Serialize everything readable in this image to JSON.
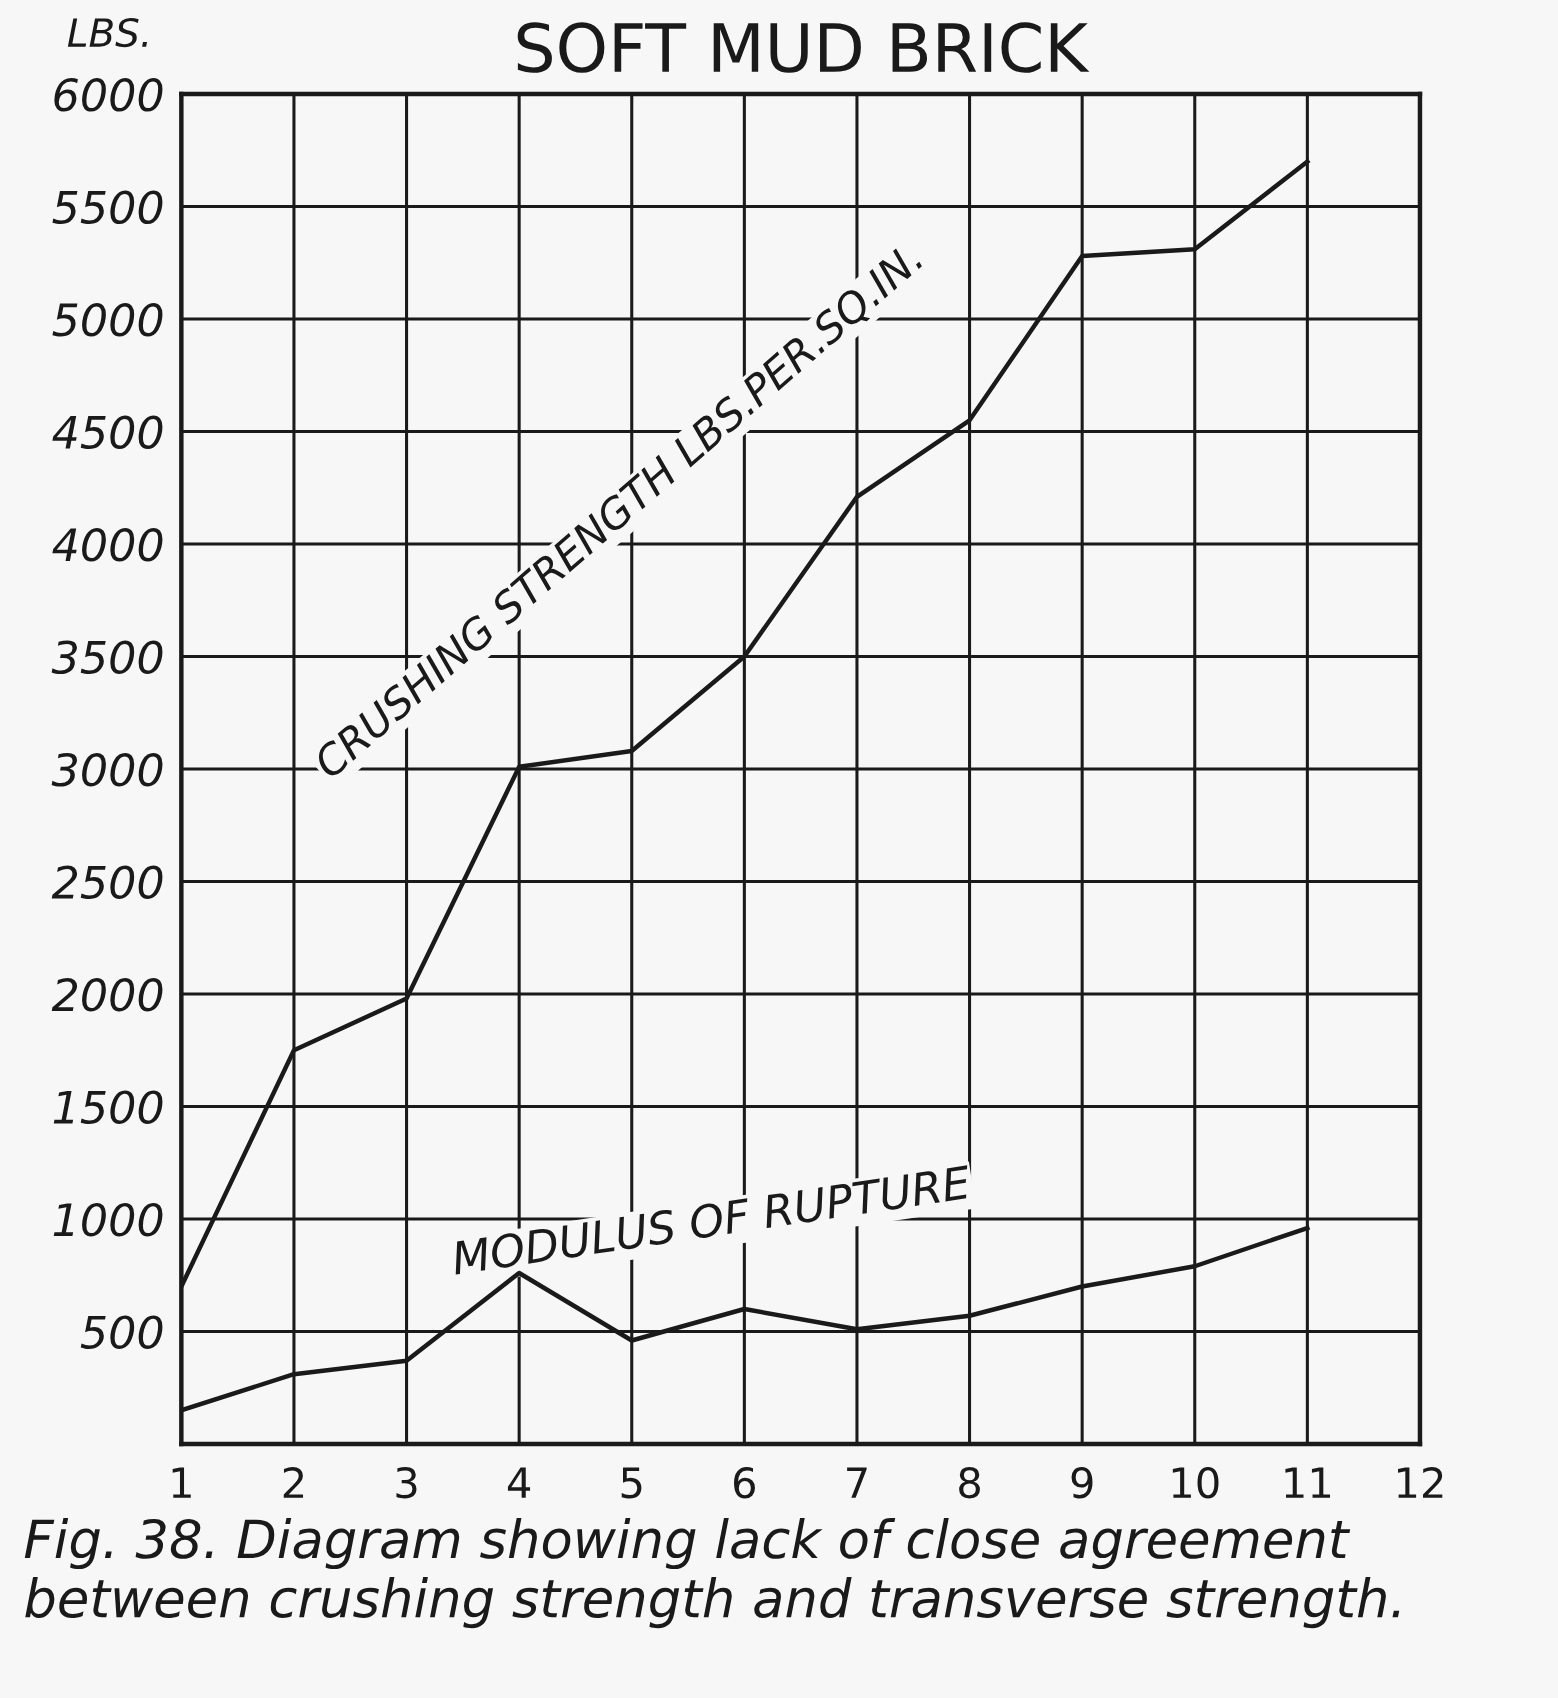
{
  "chart_data": {
    "type": "line",
    "title": "SOFT MUD BRICK",
    "ylabel": "LBS.",
    "x": [
      1,
      2,
      3,
      4,
      5,
      6,
      7,
      8,
      9,
      10,
      11
    ],
    "series": [
      {
        "name": "CRUSHING STRENGTH LBS.PER.SQ.IN.",
        "color": "#1a1a1a",
        "values": [
          700,
          1750,
          1980,
          3010,
          3080,
          3500,
          4210,
          4550,
          5280,
          5310,
          5700
        ]
      },
      {
        "name": "MODULUS OF RUPTURE",
        "color": "#1a1a1a",
        "values": [
          150,
          310,
          370,
          760,
          460,
          600,
          510,
          570,
          700,
          790,
          960
        ]
      }
    ],
    "xlim": [
      1,
      12
    ],
    "xticks": [
      1,
      2,
      3,
      4,
      5,
      6,
      7,
      8,
      9,
      10,
      11,
      12
    ],
    "ylim": [
      0,
      6000
    ],
    "yticks": [
      500,
      1000,
      1500,
      2000,
      2500,
      3000,
      3500,
      4000,
      4500,
      5000,
      5500,
      6000
    ],
    "grid": true,
    "legend": false,
    "marker": "none",
    "line_style": "solid",
    "annotations": [
      "Fig. 38. Diagram showing lack of close agreement between crushing strength and transverse strength."
    ]
  }
}
